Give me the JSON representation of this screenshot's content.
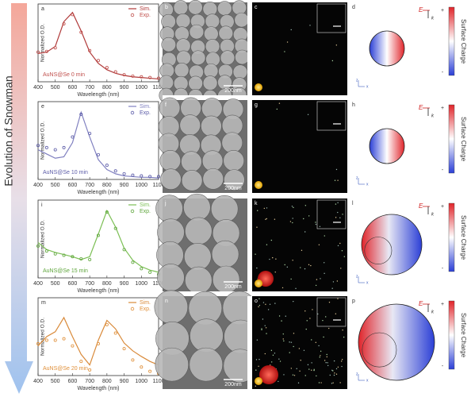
{
  "side_label": "Evolution of Snowman",
  "panel_letters": [
    "a",
    "b",
    "c",
    "d",
    "e",
    "f",
    "g",
    "h",
    "i",
    "j",
    "k",
    "l",
    "m",
    "n",
    "o",
    "p"
  ],
  "scale_bar_label": "200nm",
  "field_label": "E",
  "wave_label": "k",
  "axis_x_label": "x",
  "axis_z_label": "z",
  "colorbar": {
    "title": "Surface Charge",
    "max_label": "+",
    "min_label": "-"
  },
  "chart_data": [
    {
      "type": "line",
      "annotation": "AuNS@Se 0 min",
      "xlabel": "Wavelength (nm)",
      "ylabel": "Normalized O.D.",
      "x": [
        400,
        450,
        500,
        550,
        600,
        650,
        700,
        750,
        800,
        850,
        900,
        950,
        1000,
        1050,
        1100
      ],
      "series": [
        {
          "name": "Sim.",
          "color": "#b03a3a",
          "mode": "line",
          "values": [
            0.4,
            0.42,
            0.5,
            0.85,
            0.98,
            0.72,
            0.42,
            0.26,
            0.17,
            0.12,
            0.09,
            0.07,
            0.06,
            0.05,
            0.04
          ]
        },
        {
          "name": "Exp.",
          "color": "#c0504d",
          "mode": "markers",
          "values": [
            0.42,
            0.43,
            0.48,
            0.82,
            0.95,
            0.7,
            0.44,
            0.3,
            0.2,
            0.14,
            0.1,
            0.08,
            0.07,
            0.06,
            0.05
          ]
        }
      ],
      "xlim": [
        400,
        1100
      ],
      "xticks": [
        400,
        500,
        600,
        700,
        800,
        900,
        1000,
        1100
      ],
      "ylim": [
        0,
        1.1
      ]
    },
    {
      "type": "line",
      "annotation": "AuNS@Se 10 min",
      "xlabel": "Wavelength (nm)",
      "ylabel": "Normalized O.D.",
      "x": [
        400,
        450,
        500,
        550,
        600,
        650,
        700,
        750,
        800,
        850,
        900,
        950,
        1000,
        1050,
        1100
      ],
      "series": [
        {
          "name": "Sim.",
          "color": "#8080c0",
          "mode": "line",
          "values": [
            0.42,
            0.36,
            0.3,
            0.32,
            0.52,
            0.95,
            0.6,
            0.28,
            0.14,
            0.08,
            0.05,
            0.04,
            0.03,
            0.03,
            0.02
          ]
        },
        {
          "name": "Exp.",
          "color": "#5c5ca8",
          "mode": "markers",
          "values": [
            0.48,
            0.45,
            0.42,
            0.45,
            0.6,
            0.92,
            0.65,
            0.35,
            0.2,
            0.12,
            0.08,
            0.06,
            0.05,
            0.04,
            0.04
          ]
        }
      ],
      "xlim": [
        400,
        1100
      ],
      "xticks": [
        400,
        500,
        600,
        700,
        800,
        900,
        1000,
        1100
      ],
      "ylim": [
        0,
        1.1
      ]
    },
    {
      "type": "line",
      "annotation": "AuNS@Se 15 min",
      "xlabel": "Wavelength (nm)",
      "ylabel": "Normalized O.D.",
      "x": [
        400,
        450,
        500,
        550,
        600,
        650,
        700,
        750,
        800,
        850,
        900,
        950,
        1000,
        1050,
        1100
      ],
      "series": [
        {
          "name": "Sim.",
          "color": "#7cbf55",
          "mode": "line",
          "values": [
            0.5,
            0.4,
            0.36,
            0.33,
            0.3,
            0.26,
            0.3,
            0.62,
            0.95,
            0.72,
            0.42,
            0.25,
            0.16,
            0.11,
            0.08
          ]
        },
        {
          "name": "Exp.",
          "color": "#5fa63c",
          "mode": "markers",
          "values": [
            0.45,
            0.38,
            0.34,
            0.32,
            0.3,
            0.27,
            0.26,
            0.6,
            0.93,
            0.7,
            0.4,
            0.22,
            0.13,
            0.08,
            0.05
          ]
        }
      ],
      "xlim": [
        400,
        1100
      ],
      "xticks": [
        400,
        500,
        600,
        700,
        800,
        900,
        1000,
        1100
      ],
      "ylim": [
        0,
        1.1
      ]
    },
    {
      "type": "line",
      "annotation": "AuNS@Se 20 min",
      "xlabel": "Wavelength (nm)",
      "ylabel": "Normalized O.D.",
      "x": [
        400,
        450,
        500,
        550,
        600,
        650,
        700,
        750,
        800,
        850,
        900,
        950,
        1000,
        1050,
        1100
      ],
      "series": [
        {
          "name": "Sim.",
          "color": "#d98a3a",
          "mode": "line",
          "values": [
            0.42,
            0.55,
            0.62,
            0.82,
            0.55,
            0.3,
            0.15,
            0.5,
            0.78,
            0.66,
            0.46,
            0.35,
            0.27,
            0.2,
            0.15
          ]
        },
        {
          "name": "Exp.",
          "color": "#e0903a",
          "mode": "markers",
          "values": [
            0.45,
            0.5,
            0.5,
            0.52,
            0.42,
            0.2,
            0.08,
            0.45,
            0.72,
            0.6,
            0.38,
            0.22,
            0.12,
            0.06,
            0.03
          ]
        }
      ],
      "xlim": [
        400,
        1100
      ],
      "xticks": [
        400,
        500,
        600,
        700,
        800,
        900,
        1000,
        1100
      ],
      "ylim": [
        0,
        1.1
      ]
    }
  ]
}
